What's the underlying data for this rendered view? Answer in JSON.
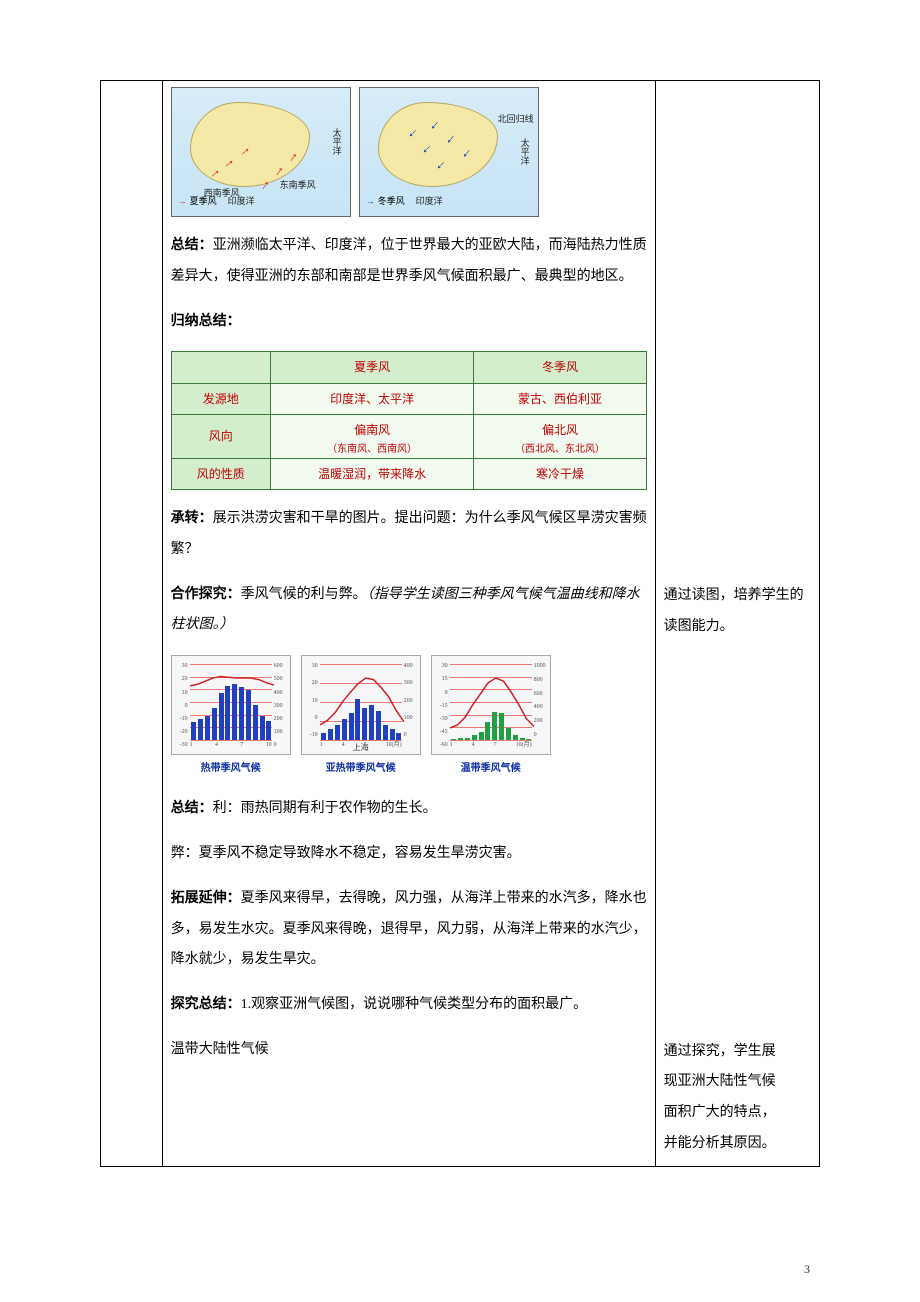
{
  "pagenum": "3",
  "maps": {
    "summer_legend": "夏季风",
    "winter_legend": "冬季风",
    "labels": {
      "pacific": "太平洋",
      "indian": "印度洋",
      "tropic": "北回归线",
      "sw": "西南季风",
      "se": "东南季风"
    }
  },
  "para": {
    "summary_label": "总结：",
    "summary_text": "亚洲濒临太平洋、印度洋，位于世界最大的亚欧大陆，而海陆热力性质差异大，使得亚洲的东部和南部是世界季风气候面积最广、最典型的地区。",
    "induce_label": "归纳总结：",
    "transition_label": "承转：",
    "transition_text": "展示洪涝灾害和干旱的图片。提出问题：为什么季风气候区旱涝灾害频繁？",
    "coop_label": "合作探究：",
    "coop_text": "季风气候的利与弊。",
    "coop_note": "（指导学生读图三种季风气候气温曲线和降水柱状图。）",
    "summary2_label": "总结：",
    "summary2_text": "利：雨热同期有利于农作物的生长。",
    "summary2_bad": "弊：夏季风不稳定导致降水不稳定，容易发生旱涝灾害。",
    "ext_label": "拓展延伸：",
    "ext_text": "夏季风来得早，去得晚，风力强，从海洋上带来的水汽多，降水也多，易发生水灾。夏季风来得晚，退得早，风力弱，从海洋上带来的水汽少，降水就少，易发生旱灾。",
    "inq_label": "探究总结：",
    "inq_text": "1.观察亚洲气候图，说说哪种气候类型分布的面积最广。",
    "inq_ans": "温带大陆性气候"
  },
  "monsoon": {
    "cols": [
      "夏季风",
      "冬季风"
    ],
    "rows": [
      {
        "head": "发源地",
        "cells": [
          "印度洋、太平洋",
          "蒙古、西伯利亚"
        ],
        "sub": [
          "",
          ""
        ]
      },
      {
        "head": "风向",
        "cells": [
          "偏南风",
          "偏北风"
        ],
        "sub": [
          "（东南风、西南风）",
          "（西北风、东北风）"
        ]
      },
      {
        "head": "风的性质",
        "cells": [
          "温暖湿润，带来降水",
          "寒冷干燥"
        ],
        "sub": [
          "",
          ""
        ]
      }
    ]
  },
  "sidebar": {
    "s1": "通过读图，培养学生的读图能力。",
    "s2a": "通过探究，学生展",
    "s2b": "现亚洲大陆性气候",
    "s2c": "面积广大的特点，",
    "s2d": "并能分析其原因。"
  },
  "charts": [
    {
      "caption": "热带季风气候",
      "bar_color": "#2040c0",
      "grid_color": "#e77",
      "temp_color": "#d02020",
      "yl": [
        "30",
        "20",
        "10",
        "0",
        "-10",
        "-20",
        "-30"
      ],
      "yr": [
        "600",
        "500",
        "400",
        "300",
        "200",
        "100",
        "0"
      ],
      "xl": [
        "1",
        "4",
        "7",
        "10"
      ],
      "bars": [
        30,
        35,
        40,
        55,
        80,
        92,
        95,
        90,
        85,
        60,
        40,
        32
      ],
      "temp": [
        72,
        74,
        78,
        82,
        84,
        83,
        82,
        82,
        82,
        80,
        76,
        73
      ],
      "city": ""
    },
    {
      "caption": "亚热带季风气候",
      "bar_color": "#2040c0",
      "grid_color": "#e77",
      "temp_color": "#d02020",
      "yl": [
        "30",
        "20",
        "10",
        "0",
        "-10"
      ],
      "yr": [
        "400",
        "300",
        "200",
        "100",
        "0"
      ],
      "xl": [
        "1",
        "4",
        "7",
        "10(月)"
      ],
      "bars": [
        12,
        18,
        25,
        35,
        45,
        70,
        55,
        60,
        50,
        25,
        18,
        12
      ],
      "temp": [
        22,
        28,
        38,
        52,
        64,
        75,
        82,
        80,
        70,
        58,
        40,
        26
      ],
      "city": "上海"
    },
    {
      "caption": "温带季风气候",
      "bar_color": "#20a040",
      "grid_color": "#e77",
      "temp_color": "#d02020",
      "yl": [
        "30",
        "15",
        "0",
        "-15",
        "-30",
        "-45",
        "-60"
      ],
      "yr": [
        "1000",
        "800",
        "600",
        "400",
        "200",
        "0"
      ],
      "xl": [
        "1",
        "4",
        "7",
        "10(月)"
      ],
      "bars": [
        2,
        3,
        4,
        8,
        14,
        30,
        48,
        45,
        20,
        8,
        4,
        2
      ],
      "temp": [
        18,
        22,
        32,
        48,
        62,
        76,
        82,
        78,
        64,
        48,
        30,
        20
      ],
      "city": ""
    }
  ]
}
